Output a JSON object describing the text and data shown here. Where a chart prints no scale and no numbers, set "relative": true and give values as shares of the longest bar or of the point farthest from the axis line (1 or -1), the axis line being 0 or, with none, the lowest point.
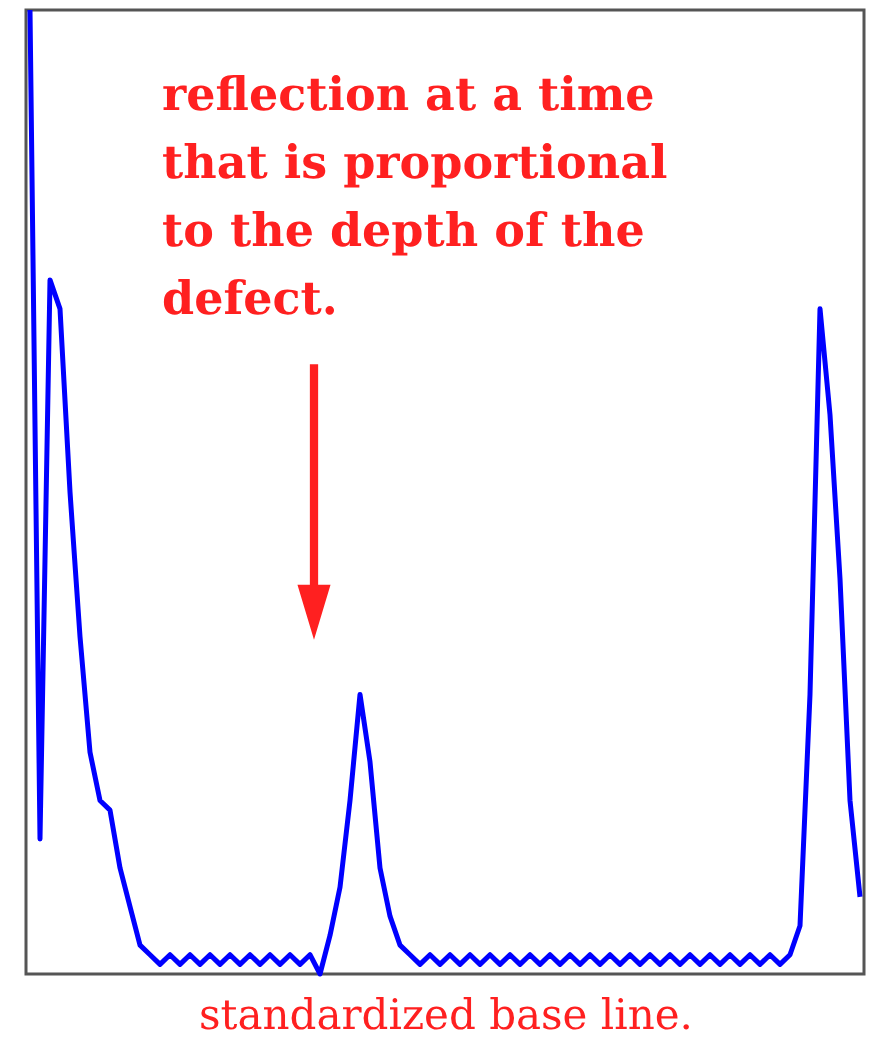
{
  "chart_data": {
    "type": "line",
    "relative": true,
    "title": "reflection at a time that is proportional to the depth of the defect.",
    "xlabel": "standardized base line.",
    "categories": [
      null,
      null,
      null,
      null,
      null,
      null,
      null,
      null,
      null,
      null,
      null,
      null,
      null,
      null,
      null,
      null,
      null,
      null,
      null,
      null,
      null,
      null,
      null,
      null,
      null,
      null,
      null,
      null,
      null,
      null,
      null,
      null,
      null,
      null,
      null,
      null,
      null,
      null,
      null,
      null,
      null,
      null,
      null,
      null,
      null,
      null,
      null,
      null,
      null,
      null,
      null,
      null,
      null,
      null,
      null,
      null,
      null,
      null,
      null,
      null,
      null,
      null,
      null,
      null,
      null,
      null,
      null,
      null,
      null,
      null,
      null,
      null,
      null,
      null,
      null,
      null,
      null,
      null,
      null,
      null,
      null,
      null,
      null,
      null
    ],
    "series": [
      {
        "color": "#0000ff",
        "values": [
          1.0,
          0.14,
          0.72,
          0.69,
          0.5,
          0.35,
          0.23,
          0.18,
          0.17,
          0.11,
          0.07,
          0.03,
          0.02,
          0.01,
          0.02,
          0.01,
          0.02,
          0.01,
          0.02,
          0.01,
          0.02,
          0.01,
          0.02,
          0.01,
          0.02,
          0.01,
          0.02,
          0.01,
          0.02,
          0.0,
          0.04,
          0.09,
          0.18,
          0.29,
          0.22,
          0.11,
          0.06,
          0.03,
          0.02,
          0.01,
          0.02,
          0.01,
          0.02,
          0.01,
          0.02,
          0.01,
          0.02,
          0.01,
          0.02,
          0.01,
          0.02,
          0.01,
          0.02,
          0.01,
          0.02,
          0.01,
          0.02,
          0.01,
          0.02,
          0.01,
          0.02,
          0.01,
          0.02,
          0.01,
          0.02,
          0.01,
          0.02,
          0.01,
          0.02,
          0.01,
          0.02,
          0.01,
          0.02,
          0.01,
          0.02,
          0.01,
          0.02,
          0.05,
          0.29,
          0.69,
          0.58,
          0.41,
          0.18,
          0.08
        ]
      }
    ],
    "grid": false,
    "marker": "none",
    "line_style": "solid"
  }
}
